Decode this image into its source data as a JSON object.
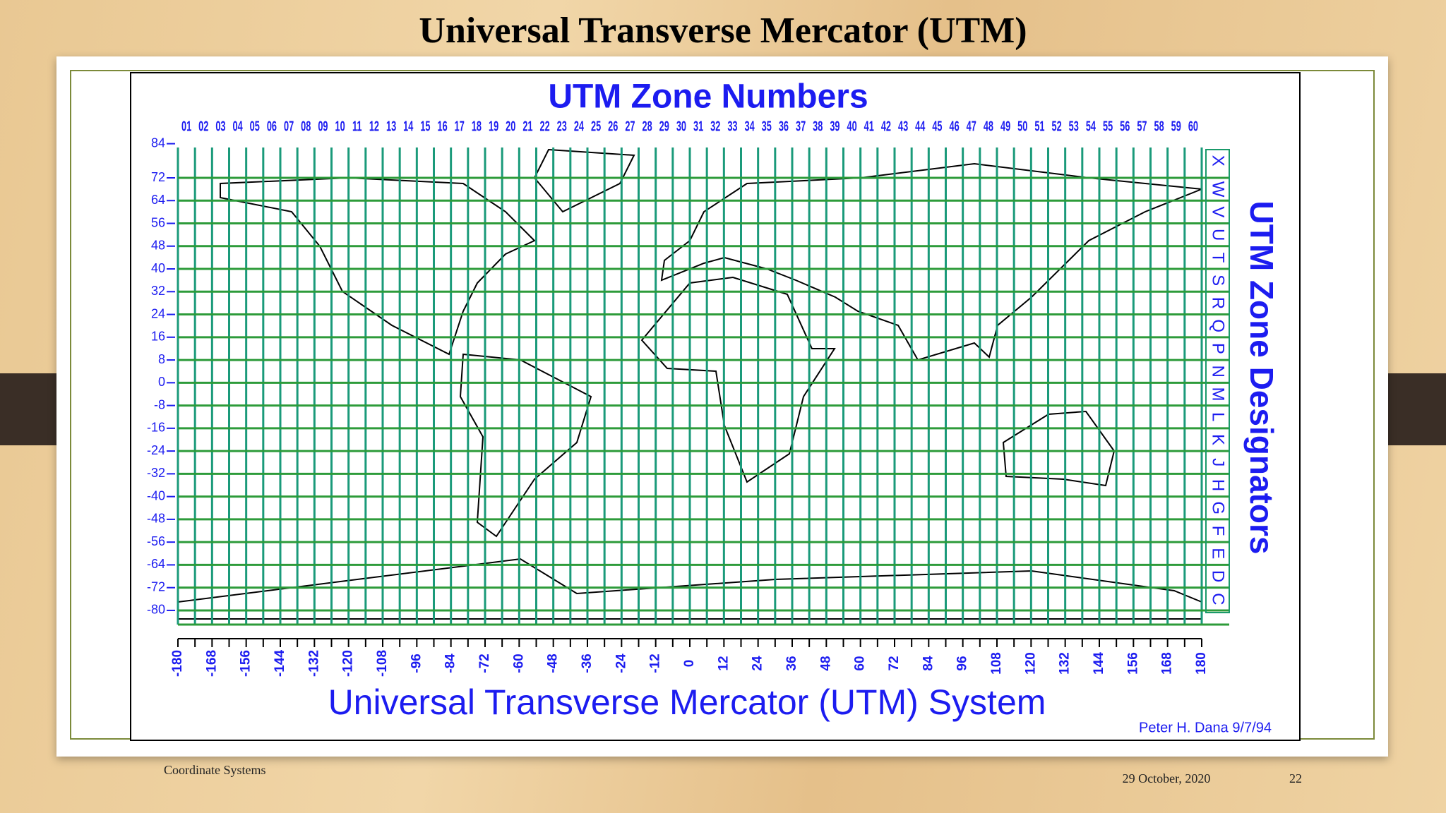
{
  "slide": {
    "title": "Universal Transverse Mercator (UTM)",
    "footer_left": "Coordinate Systems",
    "date": "29 October, 2020",
    "page": 22
  },
  "map": {
    "title": "UTM Zone Numbers",
    "zone_numbers": [
      "01",
      "02",
      "03",
      "04",
      "05",
      "06",
      "07",
      "08",
      "09",
      "10",
      "11",
      "12",
      "13",
      "14",
      "15",
      "16",
      "17",
      "18",
      "19",
      "20",
      "21",
      "22",
      "23",
      "24",
      "25",
      "26",
      "27",
      "28",
      "29",
      "30",
      "31",
      "32",
      "33",
      "34",
      "35",
      "36",
      "37",
      "38",
      "39",
      "40",
      "41",
      "42",
      "43",
      "44",
      "45",
      "46",
      "47",
      "48",
      "49",
      "50",
      "51",
      "52",
      "53",
      "54",
      "55",
      "56",
      "57",
      "58",
      "59",
      "60"
    ],
    "latitudes": [
      84,
      72,
      64,
      56,
      48,
      40,
      32,
      24,
      16,
      8,
      0,
      -8,
      -16,
      -24,
      -32,
      -40,
      -48,
      -56,
      -64,
      -72,
      -80
    ],
    "longitudes": [
      -180,
      -168,
      -156,
      -144,
      -132,
      -120,
      -108,
      -96,
      -84,
      -72,
      -60,
      -48,
      -36,
      -24,
      -12,
      0,
      12,
      24,
      36,
      48,
      60,
      72,
      84,
      96,
      108,
      120,
      132,
      144,
      156,
      168,
      180
    ],
    "designators": [
      "X",
      "W",
      "V",
      "U",
      "T",
      "S",
      "R",
      "Q",
      "P",
      "N",
      "M",
      "L",
      "K",
      "J",
      "H",
      "G",
      "F",
      "E",
      "D",
      "C"
    ],
    "designators_title": "UTM Zone Designators",
    "caption": "Universal Transverse Mercator (UTM) System",
    "credit": "Peter H. Dana 9/7/94"
  }
}
